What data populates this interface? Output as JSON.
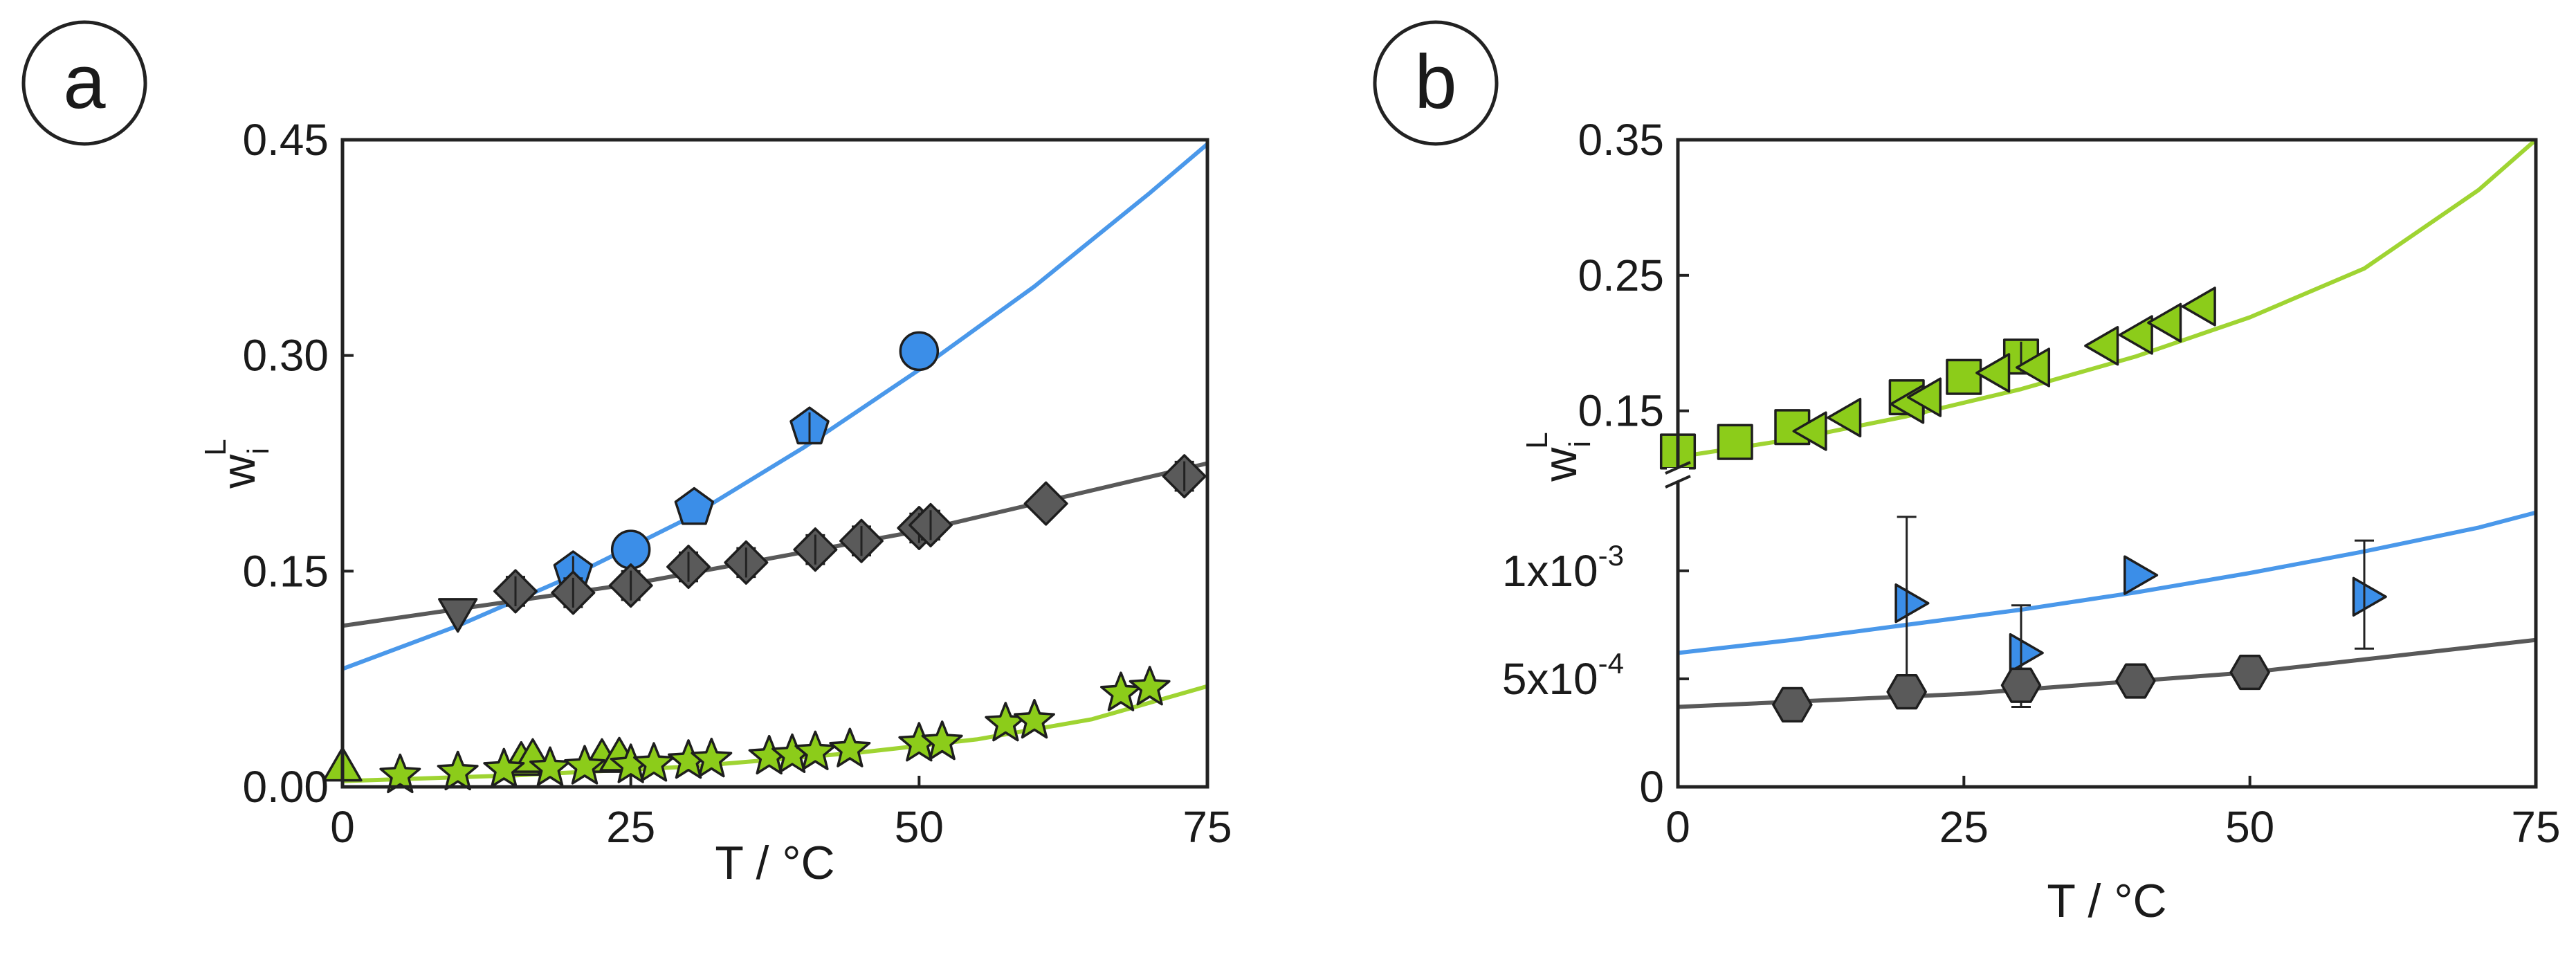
{
  "colors": {
    "blue": "#3b8ee8",
    "gray": "#5a5a5a",
    "green": "#8ccc1a",
    "blue_line": "#4a98ea",
    "gray_line": "#595959",
    "green_line": "#9fd432"
  },
  "chart_data": [
    {
      "panel": "a",
      "type": "scatter",
      "xlabel": "T / °C",
      "ylabel_base": "w",
      "ylabel_sub": "i",
      "ylabel_sup": "L",
      "xlim": [
        0,
        75
      ],
      "ylim": [
        0,
        0.45
      ],
      "xticks": [
        0,
        25,
        50,
        75
      ],
      "xtick_labels": [
        "0",
        "25",
        "50",
        "75"
      ],
      "yticks": [
        0,
        0.15,
        0.3,
        0.45
      ],
      "ytick_labels": [
        "0.00",
        "0.15",
        "0.30",
        "0.45"
      ],
      "curves": [
        {
          "name": "blue fit",
          "color_key": "blue_line",
          "x": [
            0,
            10,
            20,
            30,
            40,
            50,
            60,
            70,
            75
          ],
          "y": [
            0.082,
            0.112,
            0.147,
            0.187,
            0.236,
            0.29,
            0.348,
            0.413,
            0.447
          ]
        },
        {
          "name": "gray fit",
          "color_key": "gray_line",
          "x": [
            0,
            25,
            50,
            75
          ],
          "y": [
            0.112,
            0.141,
            0.178,
            0.225
          ]
        },
        {
          "name": "green fit",
          "color_key": "green_line",
          "x": [
            0,
            15,
            30,
            45,
            55,
            65,
            75
          ],
          "y": [
            0.004,
            0.008,
            0.014,
            0.024,
            0.033,
            0.047,
            0.07
          ]
        }
      ],
      "series": [
        {
          "name": "blue circles",
          "marker": "circle",
          "color_key": "blue",
          "points": [
            {
              "x": 25,
              "y": 0.165
            },
            {
              "x": 50,
              "y": 0.303
            }
          ]
        },
        {
          "name": "blue pentagons",
          "marker": "pentagon",
          "color_key": "blue",
          "points": [
            {
              "x": 20,
              "y": 0.15,
              "err": 0.008
            },
            {
              "x": 30.5,
              "y": 0.194
            },
            {
              "x": 40.5,
              "y": 0.25,
              "err": 0.008
            }
          ]
        },
        {
          "name": "gray diamonds",
          "marker": "diamond",
          "color_key": "gray",
          "points": [
            {
              "x": 15,
              "y": 0.136,
              "err": 0.01
            },
            {
              "x": 20,
              "y": 0.135,
              "err": 0.01
            },
            {
              "x": 25,
              "y": 0.14,
              "err": 0.01
            },
            {
              "x": 30,
              "y": 0.153,
              "err": 0.01
            },
            {
              "x": 35,
              "y": 0.156,
              "err": 0.01
            },
            {
              "x": 41,
              "y": 0.165,
              "err": 0.01
            },
            {
              "x": 45,
              "y": 0.171,
              "err": 0.01
            },
            {
              "x": 50,
              "y": 0.18,
              "err": 0.01
            },
            {
              "x": 51,
              "y": 0.182,
              "err": 0.01
            },
            {
              "x": 61,
              "y": 0.197
            },
            {
              "x": 73,
              "y": 0.216,
              "err": 0.01
            }
          ]
        },
        {
          "name": "gray triangles down",
          "marker": "triangle-down",
          "color_key": "gray",
          "points": [
            {
              "x": 10,
              "y": 0.123
            }
          ]
        },
        {
          "name": "green triangles up",
          "marker": "triangle-up",
          "color_key": "green",
          "points": [
            {
              "x": 0,
              "y": 0.012
            },
            {
              "x": 15.5,
              "y": 0.016
            },
            {
              "x": 16.5,
              "y": 0.018
            },
            {
              "x": 22.5,
              "y": 0.018
            },
            {
              "x": 24,
              "y": 0.019
            }
          ]
        },
        {
          "name": "green stars",
          "marker": "star",
          "color_key": "green",
          "points": [
            {
              "x": 5,
              "y": 0.008
            },
            {
              "x": 10,
              "y": 0.01
            },
            {
              "x": 14,
              "y": 0.012
            },
            {
              "x": 18,
              "y": 0.013
            },
            {
              "x": 21,
              "y": 0.014
            },
            {
              "x": 25,
              "y": 0.015
            },
            {
              "x": 27,
              "y": 0.016
            },
            {
              "x": 30,
              "y": 0.018
            },
            {
              "x": 32,
              "y": 0.019
            },
            {
              "x": 37,
              "y": 0.021
            },
            {
              "x": 39,
              "y": 0.022
            },
            {
              "x": 41,
              "y": 0.024
            },
            {
              "x": 44,
              "y": 0.026
            },
            {
              "x": 50,
              "y": 0.03
            },
            {
              "x": 52,
              "y": 0.031
            },
            {
              "x": 57.5,
              "y": 0.044
            },
            {
              "x": 60,
              "y": 0.046
            },
            {
              "x": 67.5,
              "y": 0.065
            },
            {
              "x": 70,
              "y": 0.069
            }
          ]
        }
      ]
    },
    {
      "panel": "b",
      "type": "scatter",
      "xlabel": "T / °C",
      "ylabel_base": "w",
      "ylabel_sub": "i",
      "ylabel_sup": "L",
      "xlim": [
        0,
        75
      ],
      "xticks": [
        0,
        25,
        50,
        75
      ],
      "xtick_labels": [
        "0",
        "25",
        "50",
        "75"
      ],
      "broken_axis": true,
      "upper": {
        "ylim": [
          0.11,
          0.35
        ],
        "yticks": [
          0.15,
          0.25,
          0.35
        ],
        "ytick_labels": [
          "0.15",
          "0.25",
          "0.35"
        ],
        "curves": [
          {
            "name": "green fit",
            "color_key": "green_line",
            "x": [
              0,
              10,
              20,
              30,
              40,
              50,
              60,
              70,
              75
            ],
            "y": [
              0.116,
              0.129,
              0.146,
              0.166,
              0.19,
              0.219,
              0.255,
              0.313,
              0.35
            ]
          }
        ],
        "series": [
          {
            "name": "green squares",
            "marker": "square",
            "color_key": "green",
            "points": [
              {
                "x": 0,
                "y": 0.12
              },
              {
                "x": 5,
                "y": 0.127
              },
              {
                "x": 10,
                "y": 0.138
              },
              {
                "x": 20,
                "y": 0.16
              },
              {
                "x": 25,
                "y": 0.175
              },
              {
                "x": 30,
                "y": 0.19,
                "err": 0.012
              }
            ]
          },
          {
            "name": "green triangles left",
            "marker": "triangle-left",
            "color_key": "green",
            "points": [
              {
                "x": 12,
                "y": 0.135
              },
              {
                "x": 15,
                "y": 0.145
              },
              {
                "x": 20.5,
                "y": 0.155
              },
              {
                "x": 22,
                "y": 0.16
              },
              {
                "x": 28,
                "y": 0.178
              },
              {
                "x": 31.5,
                "y": 0.182
              },
              {
                "x": 37.5,
                "y": 0.198
              },
              {
                "x": 40.5,
                "y": 0.206
              },
              {
                "x": 43,
                "y": 0.215
              },
              {
                "x": 46,
                "y": 0.227
              }
            ]
          }
        ]
      },
      "lower": {
        "ylim": [
          0,
          0.0014
        ],
        "yticks": [
          0,
          0.0005,
          0.001
        ],
        "ytick_labels": [
          "0",
          "5x10",
          "1x10"
        ],
        "ytick_exps": [
          "",
          "-4",
          "-3"
        ],
        "curves": [
          {
            "name": "blue fit",
            "color_key": "blue_line",
            "x": [
              0,
              10,
              20,
              30,
              40,
              50,
              60,
              70,
              75
            ],
            "y": [
              0.00062,
              0.00068,
              0.00075,
              0.00082,
              0.0009,
              0.00099,
              0.00109,
              0.0012,
              0.00127
            ]
          },
          {
            "name": "gray fit",
            "color_key": "gray_line",
            "x": [
              0,
              25,
              50,
              75
            ],
            "y": [
              0.00037,
              0.00043,
              0.00053,
              0.00068
            ]
          }
        ],
        "series": [
          {
            "name": "blue triangles right",
            "marker": "triangle-right",
            "color_key": "blue",
            "points": [
              {
                "x": 20,
                "y": 0.00085,
                "err_low": 0.0004,
                "err_high": 0.0004
              },
              {
                "x": 30,
                "y": 0.00062,
                "err_low": 0.00025,
                "err_high": 0.00022
              },
              {
                "x": 40,
                "y": 0.00098
              },
              {
                "x": 60,
                "y": 0.00088,
                "err_low": 0.00024,
                "err_high": 0.00026
              }
            ]
          },
          {
            "name": "gray hexagons",
            "marker": "hexagon",
            "color_key": "gray",
            "points": [
              {
                "x": 10,
                "y": 0.00038
              },
              {
                "x": 20,
                "y": 0.00044
              },
              {
                "x": 30,
                "y": 0.00047
              },
              {
                "x": 40,
                "y": 0.00049
              },
              {
                "x": 50,
                "y": 0.00053
              }
            ]
          }
        ]
      }
    }
  ]
}
